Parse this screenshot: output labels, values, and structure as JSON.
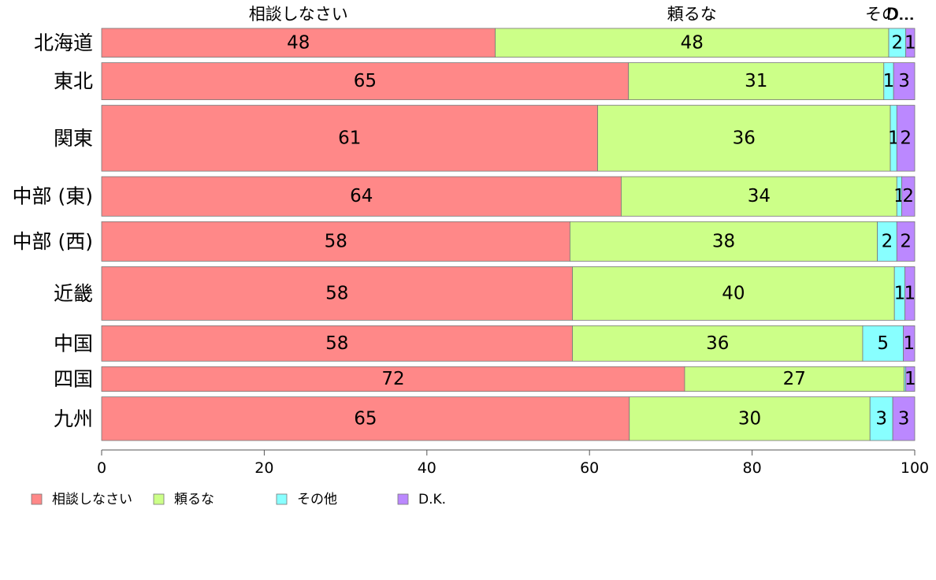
{
  "chart_data": {
    "type": "bar",
    "orientation": "horizontal",
    "stacked": true,
    "categories": [
      "北海道",
      "東北",
      "関東",
      "中部 (東)",
      "中部 (西)",
      "近畿",
      "中国",
      "四国",
      "九州"
    ],
    "row_weights": [
      3.5,
      4.5,
      8,
      4.8,
      4.8,
      6.5,
      4.3,
      3.0,
      5.3
    ],
    "series": [
      {
        "name": "相談しなさい",
        "color": "#ff8888",
        "values": [
          48.4,
          64.8,
          61.0,
          63.9,
          57.6,
          57.9,
          57.9,
          71.7,
          64.9
        ],
        "labels": [
          "48",
          "65",
          "61",
          "64",
          "58",
          "58",
          "58",
          "72",
          "65"
        ]
      },
      {
        "name": "頼るな",
        "color": "#ccff88",
        "values": [
          48.4,
          31.4,
          36.0,
          33.9,
          37.8,
          39.6,
          35.7,
          27.0,
          29.6
        ],
        "labels": [
          "48",
          "31",
          "36",
          "34",
          "38",
          "40",
          "36",
          "27",
          "30"
        ]
      },
      {
        "name": "その他",
        "color": "#88ffff",
        "values": [
          2.1,
          1.2,
          0.8,
          0.6,
          2.4,
          1.3,
          5.0,
          0.2,
          2.8
        ],
        "labels": [
          "2",
          "1",
          "1",
          "1",
          "2",
          "1",
          "5",
          "",
          "3"
        ]
      },
      {
        "name": "D.K.",
        "color": "#bb88ff",
        "values": [
          1.1,
          2.6,
          2.2,
          1.6,
          2.2,
          1.2,
          1.4,
          1.1,
          2.7
        ],
        "labels": [
          "1",
          "3",
          "2",
          "2",
          "2",
          "1",
          "1",
          "1",
          "3"
        ]
      }
    ],
    "top_labels": [
      "相談しなさい",
      "頼るな",
      "その...",
      "D..."
    ],
    "xlim": [
      0,
      100
    ],
    "xticks": [
      "0",
      "20",
      "40",
      "60",
      "80",
      "100"
    ],
    "legend_position": "bottom-left",
    "grid": false
  }
}
